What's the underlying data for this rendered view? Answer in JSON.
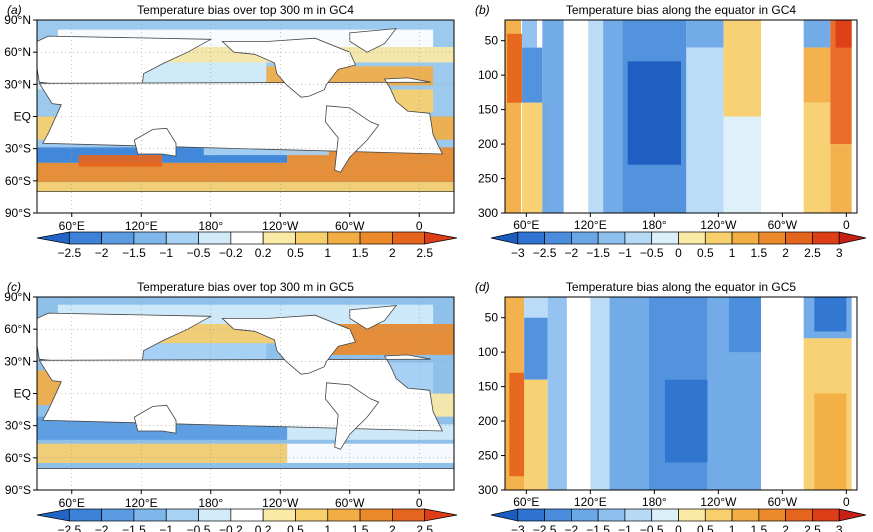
{
  "colorbars": {
    "map": {
      "ticks": [
        "−2.5",
        "−2",
        "−1.5",
        "−1",
        "−0.5",
        "−0.2",
        "0.2",
        "0.5",
        "1",
        "1.5",
        "2",
        "2.5"
      ],
      "colors": [
        "#2166c6",
        "#3b82d8",
        "#5a9be2",
        "#7fb6ec",
        "#a8d2f4",
        "#d2ebf8",
        "#ffffff",
        "#fbe9a6",
        "#f8cf6d",
        "#f2ae45",
        "#ec8a2b",
        "#e6651e",
        "#dd3e17"
      ]
    },
    "section": {
      "ticks": [
        "−3",
        "−2.5",
        "−2",
        "−1.5",
        "−1",
        "−0.5",
        "0",
        "0.5",
        "1",
        "1.5",
        "2",
        "2.5",
        "3"
      ],
      "colors": [
        "#1c5cc0",
        "#2e74d0",
        "#4a8ddc",
        "#6aa7e6",
        "#8ec0ef",
        "#b6daf6",
        "#dcf0fa",
        "#fbe9a6",
        "#f8cf6d",
        "#f2ae45",
        "#ec8a2b",
        "#e6651e",
        "#dd3e17",
        "#c42016"
      ]
    }
  },
  "chart_data": [
    {
      "type": "heatmap",
      "panel": "(a)",
      "title": "Temperature bias over top 300 m in GC4",
      "x_ticks": [
        "60°E",
        "120°E",
        "180°",
        "120°W",
        "60°W",
        "0"
      ],
      "y_ticks": [
        "90°N",
        "60°N",
        "30°N",
        "EQ",
        "30°S",
        "60°S",
        "90°S"
      ],
      "units_range": [
        -2.5,
        2.5
      ]
    },
    {
      "type": "heatmap",
      "panel": "(b)",
      "title": "Temperature bias along the equator in GC4",
      "x_ticks": [
        "60°E",
        "120°E",
        "180°",
        "120°W",
        "60°W",
        "0"
      ],
      "y_ticks": [
        "50",
        "100",
        "150",
        "200",
        "250",
        "300"
      ],
      "y_range": [
        300,
        20
      ],
      "units_range": [
        -3,
        3
      ]
    },
    {
      "type": "heatmap",
      "panel": "(c)",
      "title": "Temperature bias over top 300 m in GC5",
      "x_ticks": [
        "60°E",
        "120°E",
        "180°",
        "120°W",
        "60°W",
        "0"
      ],
      "y_ticks": [
        "90°N",
        "60°N",
        "30°N",
        "EQ",
        "30°S",
        "60°S",
        "90°S"
      ],
      "units_range": [
        -2.5,
        2.5
      ]
    },
    {
      "type": "heatmap",
      "panel": "(d)",
      "title": "Temperature bias along the equator in GC5",
      "x_ticks": [
        "60°E",
        "120°E",
        "180°",
        "120°W",
        "60°W",
        "0"
      ],
      "y_ticks": [
        "50",
        "100",
        "150",
        "200",
        "250",
        "300"
      ],
      "y_range": [
        300,
        20
      ],
      "units_range": [
        -3,
        3
      ]
    }
  ]
}
